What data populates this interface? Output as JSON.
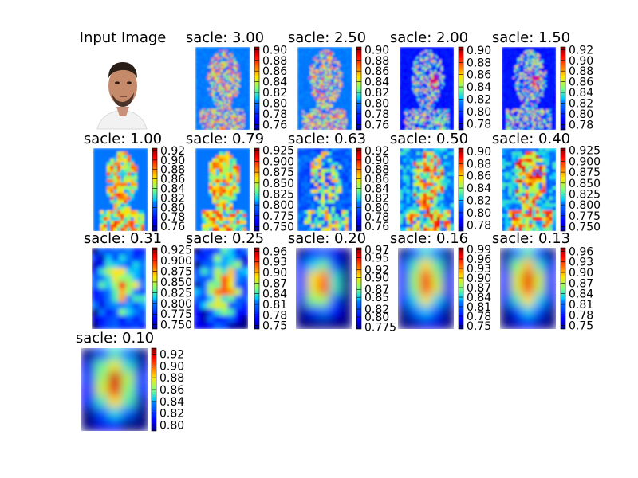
{
  "chart_data": {
    "type": "heatmap",
    "colormap": "jet",
    "input_title": "Input Image",
    "panels": [
      {
        "title": "sacle: 3.00",
        "ticks": [
          "0.90",
          "0.88",
          "0.86",
          "0.84",
          "0.82",
          "0.80",
          "0.78",
          "0.76"
        ],
        "vmin": 0.75,
        "vmax": 0.905
      },
      {
        "title": "sacle: 2.50",
        "ticks": [
          "0.90",
          "0.88",
          "0.86",
          "0.84",
          "0.82",
          "0.80",
          "0.78",
          "0.76"
        ],
        "vmin": 0.75,
        "vmax": 0.905
      },
      {
        "title": "sacle: 2.00",
        "ticks": [
          "0.90",
          "0.88",
          "0.86",
          "0.84",
          "0.82",
          "0.80",
          "0.78"
        ],
        "vmin": 0.77,
        "vmax": 0.905
      },
      {
        "title": "sacle: 1.50",
        "ticks": [
          "0.92",
          "0.90",
          "0.88",
          "0.86",
          "0.84",
          "0.82",
          "0.80",
          "0.78"
        ],
        "vmin": 0.77,
        "vmax": 0.925
      },
      {
        "title": "sacle: 1.00",
        "ticks": [
          "0.92",
          "0.90",
          "0.88",
          "0.86",
          "0.84",
          "0.82",
          "0.80",
          "0.78",
          "0.76"
        ],
        "vmin": 0.75,
        "vmax": 0.925
      },
      {
        "title": "sacle: 0.79",
        "ticks": [
          "0.925",
          "0.900",
          "0.875",
          "0.850",
          "0.825",
          "0.800",
          "0.775",
          "0.750"
        ],
        "vmin": 0.74,
        "vmax": 0.93
      },
      {
        "title": "sacle: 0.63",
        "ticks": [
          "0.92",
          "0.90",
          "0.88",
          "0.86",
          "0.84",
          "0.82",
          "0.80",
          "0.78",
          "0.76"
        ],
        "vmin": 0.75,
        "vmax": 0.925
      },
      {
        "title": "sacle: 0.50",
        "ticks": [
          "0.90",
          "0.88",
          "0.86",
          "0.84",
          "0.82",
          "0.80",
          "0.78"
        ],
        "vmin": 0.77,
        "vmax": 0.905
      },
      {
        "title": "sacle: 0.40",
        "ticks": [
          "0.925",
          "0.900",
          "0.875",
          "0.850",
          "0.825",
          "0.800",
          "0.775",
          "0.750"
        ],
        "vmin": 0.74,
        "vmax": 0.93
      },
      {
        "title": "sacle: 0.31",
        "ticks": [
          "0.925",
          "0.900",
          "0.875",
          "0.850",
          "0.825",
          "0.800",
          "0.775",
          "0.750"
        ],
        "vmin": 0.74,
        "vmax": 0.93
      },
      {
        "title": "sacle: 0.25",
        "ticks": [
          "0.96",
          "0.93",
          "0.90",
          "0.87",
          "0.84",
          "0.81",
          "0.78",
          "0.75"
        ],
        "vmin": 0.74,
        "vmax": 0.97
      },
      {
        "title": "sacle: 0.20",
        "ticks": [
          "0.97",
          "0.95",
          "0.92",
          "0.90",
          "0.87",
          "0.85",
          "0.82",
          "0.80",
          "0.775"
        ],
        "vmin": 0.77,
        "vmax": 0.975
      },
      {
        "title": "sacle: 0.16",
        "ticks": [
          "0.99",
          "0.96",
          "0.93",
          "0.90",
          "0.87",
          "0.84",
          "0.81",
          "0.78",
          "0.75"
        ],
        "vmin": 0.74,
        "vmax": 0.995
      },
      {
        "title": "sacle: 0.13",
        "ticks": [
          "0.96",
          "0.93",
          "0.90",
          "0.87",
          "0.84",
          "0.81",
          "0.78",
          "0.75"
        ],
        "vmin": 0.74,
        "vmax": 0.97
      },
      {
        "title": "sacle: 0.10",
        "ticks": [
          "0.92",
          "0.90",
          "0.88",
          "0.86",
          "0.84",
          "0.82",
          "0.80"
        ],
        "vmin": 0.79,
        "vmax": 0.93
      }
    ]
  }
}
